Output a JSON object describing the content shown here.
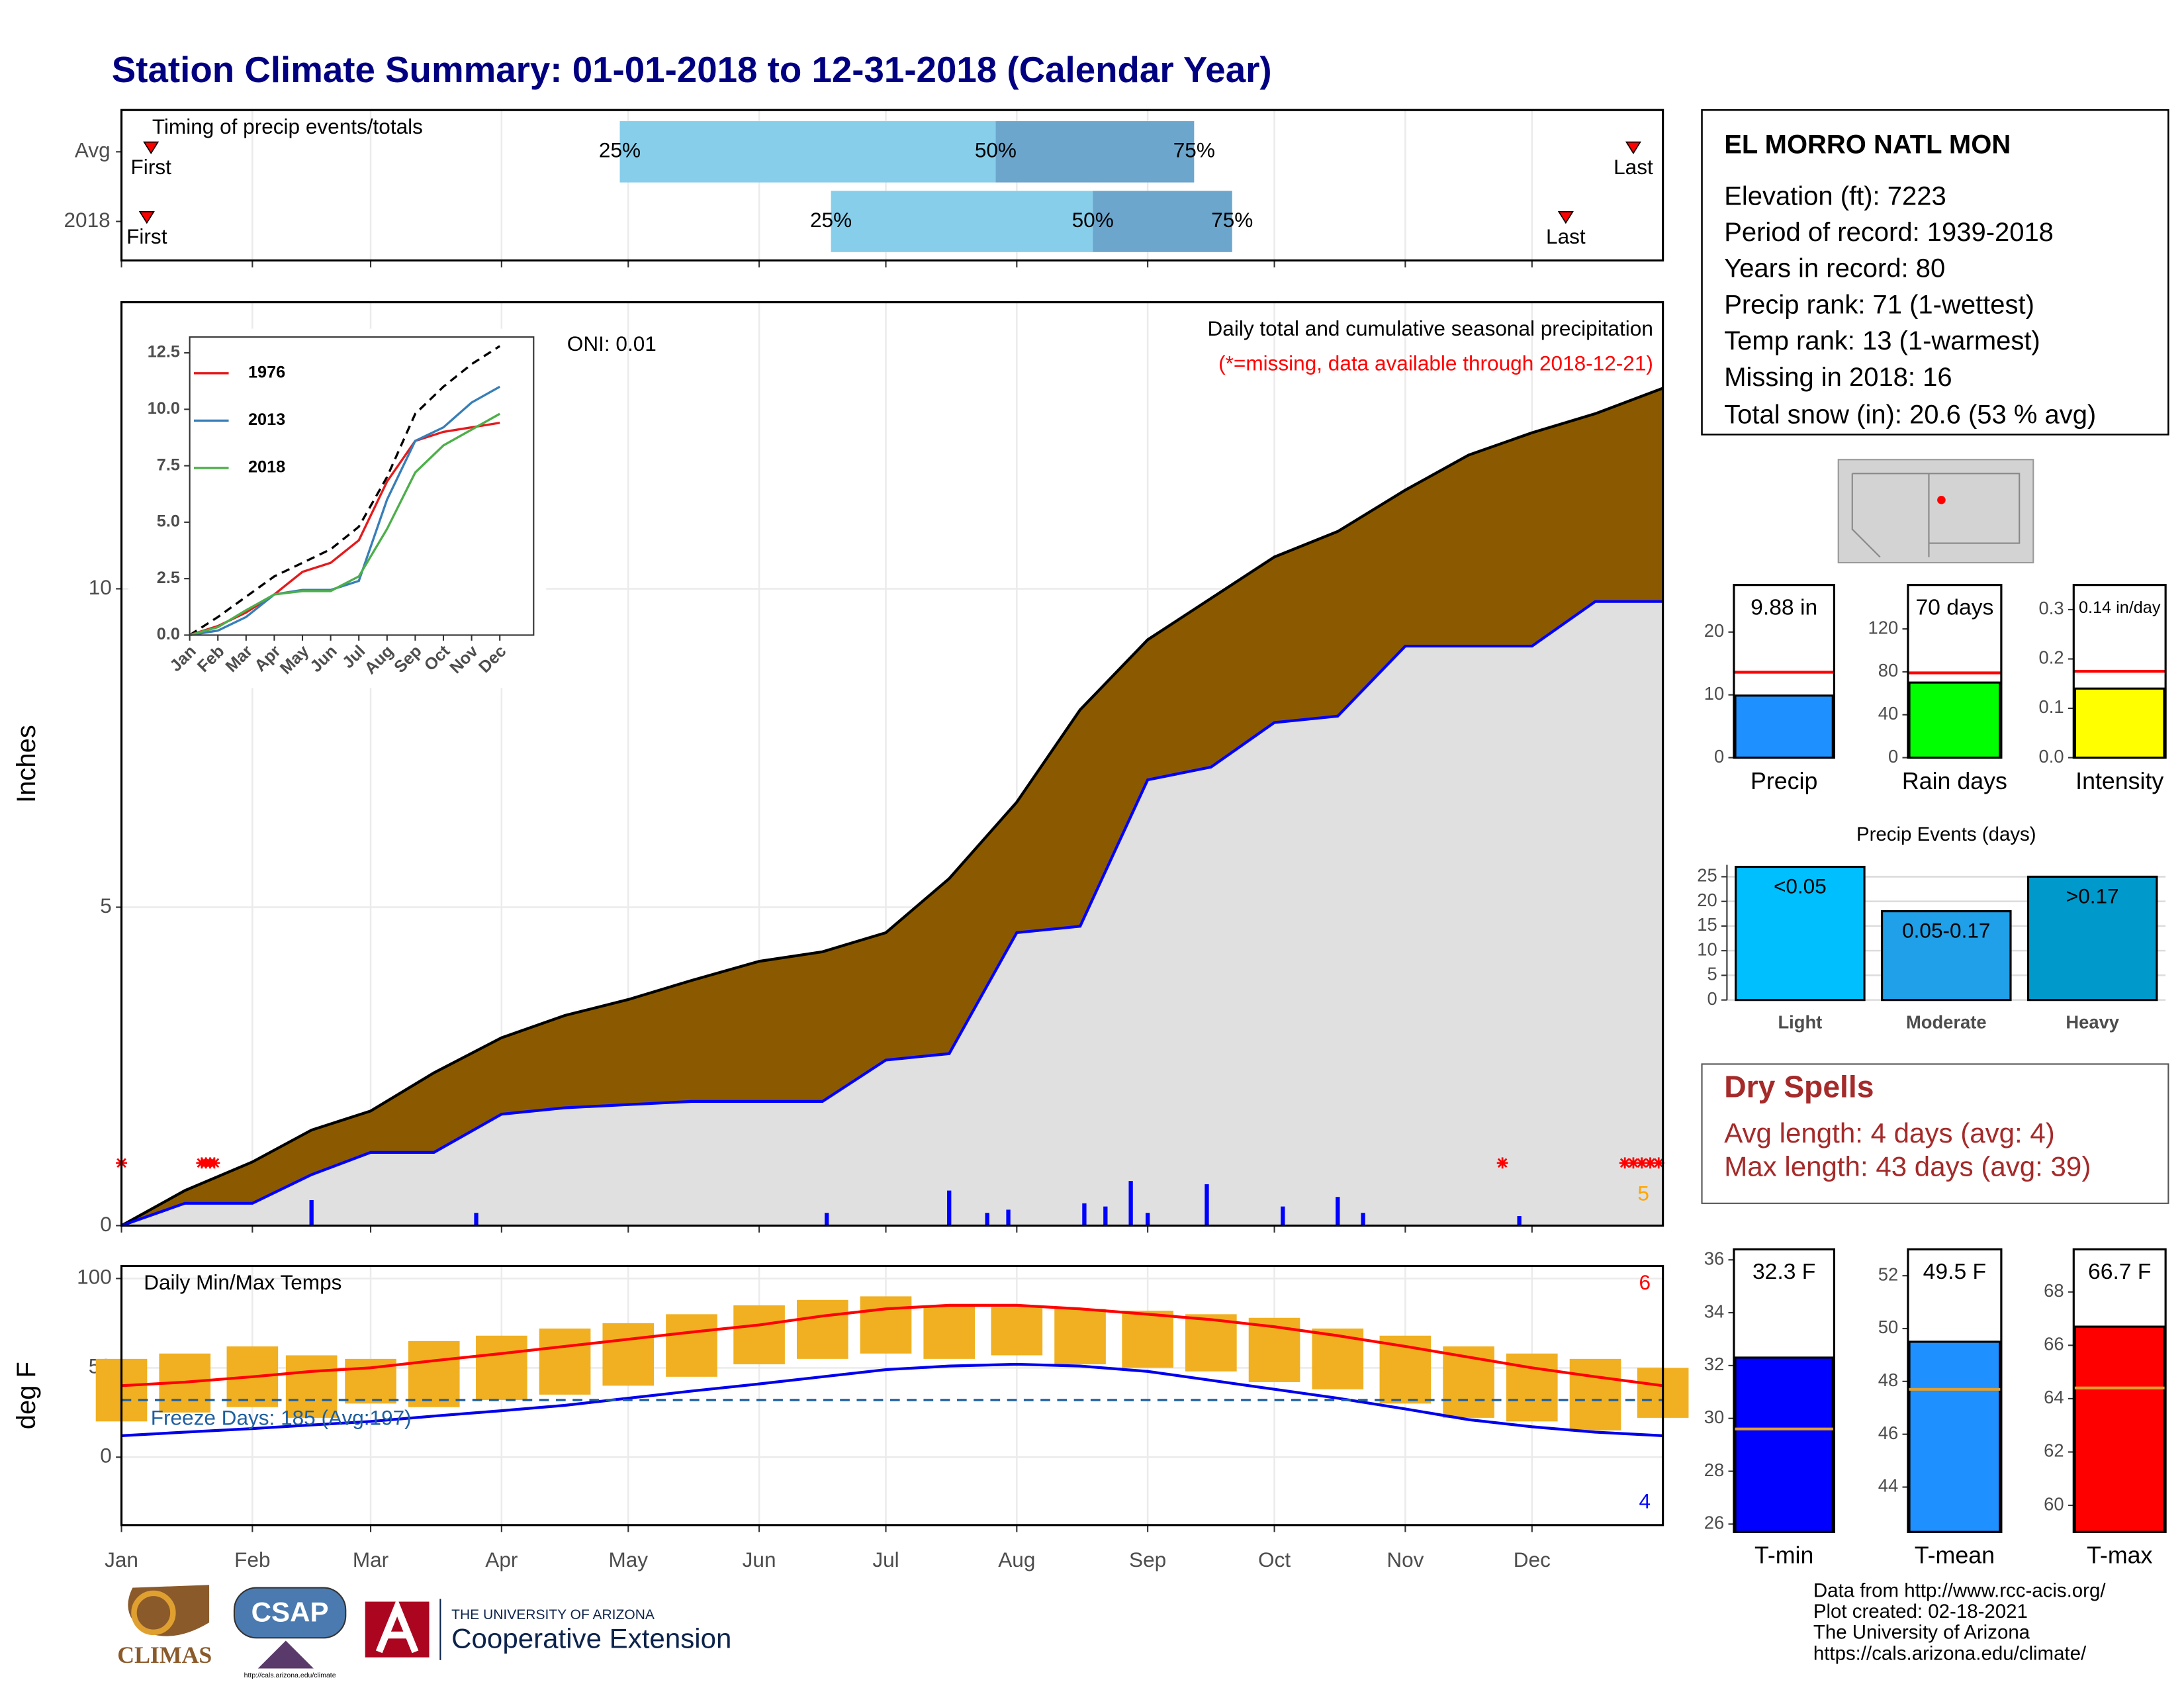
{
  "title": "Station Climate Summary: 01-01-2018 to 12-31-2018 (Calendar Year)",
  "station": {
    "name": "EL MORRO NATL MON",
    "lines": [
      "Elevation (ft): 7223",
      "Period of record: 1939-2018",
      "Years in record: 80",
      "Precip rank: 71 (1-wettest)",
      "Temp rank: 13 (1-warmest)",
      "Missing in 2018: 16",
      "Total snow (in): 20.6 (53 % avg)"
    ]
  },
  "dry_spells": {
    "title": "Dry Spells",
    "lines": [
      "Avg length: 4 days (avg: 4)",
      "Max length: 43 days (avg: 39)"
    ]
  },
  "footer": {
    "lines": [
      "Data from http://www.rcc-acis.org/",
      "Plot created: 02-18-2021",
      "The University of Arizona",
      "https://cals.arizona.edu/climate/"
    ]
  },
  "logos": {
    "climas": "CLIMAS",
    "csap": "CSAP",
    "csap_url": "http://cals.arizona.edu/climate",
    "university": "THE UNIVERSITY OF ARIZONA",
    "extension": "Cooperative Extension"
  },
  "chart_data": [
    {
      "type": "range",
      "title": "Timing of precip events/totals",
      "categories": [
        "Avg",
        "2018"
      ],
      "xlim": [
        0,
        365
      ],
      "first": [
        7,
        6
      ],
      "q25": [
        118,
        168
      ],
      "q50": [
        207,
        230
      ],
      "q75": [
        254,
        263
      ],
      "last": [
        358,
        342
      ],
      "colors": [
        "#87ceeb",
        "#6ca6cd"
      ],
      "marker_color": "#ff0000",
      "first_label": "First",
      "last_label": "Last",
      "q25_label": "25%",
      "q50_label": "50%",
      "q75_label": "75%"
    },
    {
      "type": "area",
      "title": "Daily total and cumulative seasonal precipitation",
      "note": "(*=missing, data available through 2018-12-21)",
      "annotation": "ONI: 0.01",
      "ylabel": "Inches",
      "count": 5,
      "count_color": "#ffa500",
      "x": [
        0,
        15,
        31,
        45,
        59,
        74,
        90,
        105,
        120,
        135,
        151,
        166,
        181,
        196,
        212,
        227,
        243,
        258,
        273,
        288,
        304,
        319,
        334,
        349,
        365
      ],
      "xlim": [
        0,
        365
      ],
      "ylim": [
        0,
        14.5
      ],
      "yticks": [
        0,
        5,
        10
      ],
      "grid": true,
      "series": [
        {
          "color": "#8b5a00",
          "line_color": "#000000",
          "values": [
            0,
            0.55,
            1.0,
            1.5,
            1.8,
            2.4,
            2.95,
            3.3,
            3.55,
            3.85,
            4.15,
            4.3,
            4.6,
            5.45,
            6.65,
            8.1,
            9.2,
            9.85,
            10.5,
            10.9,
            11.55,
            12.1,
            12.45,
            12.75,
            13.15
          ]
        },
        {
          "color": "#e0e0e0",
          "line_color": "#0000ff",
          "values": [
            0,
            0.35,
            0.35,
            0.8,
            1.15,
            1.15,
            1.75,
            1.85,
            1.9,
            1.95,
            1.95,
            1.95,
            2.6,
            2.7,
            4.6,
            4.7,
            7.0,
            7.2,
            7.9,
            8.0,
            9.1,
            9.1,
            9.1,
            9.8,
            9.8
          ]
        }
      ],
      "daily": {
        "color": "#0000ff",
        "x": [
          45,
          84,
          167,
          196,
          205,
          210,
          228,
          233,
          239,
          243,
          257,
          275,
          288,
          294,
          331
        ],
        "values": [
          0.4,
          0.2,
          0.2,
          0.55,
          0.2,
          0.25,
          0.35,
          0.3,
          0.7,
          0.2,
          0.65,
          0.3,
          0.45,
          0.2,
          0.15
        ]
      },
      "missing": {
        "color": "#ff0000",
        "x": [
          0,
          19,
          20,
          21,
          22,
          327,
          356,
          358,
          360,
          362,
          364
        ]
      }
    },
    {
      "type": "line",
      "categories": [
        "Jan",
        "Feb",
        "Mar",
        "Apr",
        "May",
        "Jun",
        "Jul",
        "Aug",
        "Sep",
        "Oct",
        "Nov",
        "Dec"
      ],
      "ylim": [
        0,
        13.2
      ],
      "yticks": [
        {
          "value": 0,
          "label": "0.0"
        },
        {
          "value": 2.5,
          "label": "2.5"
        },
        {
          "value": 5,
          "label": "5.0"
        },
        {
          "value": 7.5,
          "label": "7.5"
        },
        {
          "value": 10,
          "label": "10.0"
        },
        {
          "value": 12.5,
          "label": "12.5"
        }
      ],
      "series": [
        {
          "color": "#000000",
          "dash": true,
          "values": [
            0,
            0.8,
            1.7,
            2.6,
            3.2,
            3.8,
            4.8,
            7.0,
            9.8,
            11.0,
            12.0,
            12.8
          ]
        },
        {
          "name": "1976",
          "color": "#e41a1c",
          "values": [
            0,
            0.4,
            1.0,
            1.8,
            2.8,
            3.2,
            4.2,
            6.8,
            8.6,
            9.0,
            9.2,
            9.4
          ]
        },
        {
          "name": "2013",
          "color": "#377eb8",
          "values": [
            0,
            0.2,
            0.8,
            1.8,
            2.0,
            2.0,
            2.4,
            6.0,
            8.6,
            9.2,
            10.3,
            11.0
          ]
        },
        {
          "name": "2018",
          "color": "#4daf4a",
          "values": [
            0,
            0.35,
            1.1,
            1.8,
            1.95,
            1.95,
            2.6,
            4.7,
            7.2,
            8.4,
            9.1,
            9.8
          ]
        }
      ]
    },
    {
      "type": "band",
      "title": "Daily Min/Max Temps",
      "ylabel": "deg F",
      "freeze_label": "Freeze Days: 185 (Avg:197)",
      "freeze_line": 32,
      "freeze_color": "#1f5fa0",
      "count_high": 6,
      "count_low": 4,
      "x": [
        0,
        15,
        31,
        45,
        59,
        74,
        90,
        105,
        120,
        135,
        151,
        166,
        181,
        196,
        212,
        227,
        243,
        258,
        273,
        288,
        304,
        319,
        334,
        349,
        365
      ],
      "xlim": [
        0,
        365
      ],
      "ylim": [
        -38,
        107
      ],
      "yticks": [
        0,
        50,
        100
      ],
      "grid": true,
      "xticks": [
        {
          "value": 0,
          "label": "Jan"
        },
        {
          "value": 31,
          "label": "Feb"
        },
        {
          "value": 59,
          "label": "Mar"
        },
        {
          "value": 90,
          "label": "Apr"
        },
        {
          "value": 120,
          "label": "May"
        },
        {
          "value": 151,
          "label": "Jun"
        },
        {
          "value": 181,
          "label": "Jul"
        },
        {
          "value": 212,
          "label": "Aug"
        },
        {
          "value": 243,
          "label": "Sep"
        },
        {
          "value": 273,
          "label": "Oct"
        },
        {
          "value": 304,
          "label": "Nov"
        },
        {
          "value": 334,
          "label": "Dec"
        }
      ],
      "range_color": "#f0b021",
      "max": [
        55,
        58,
        62,
        57,
        55,
        65,
        68,
        72,
        75,
        80,
        85,
        88,
        90,
        85,
        84,
        83,
        82,
        80,
        78,
        72,
        68,
        62,
        58,
        55,
        50
      ],
      "min": [
        20,
        25,
        28,
        22,
        30,
        28,
        32,
        35,
        40,
        45,
        52,
        55,
        58,
        55,
        57,
        52,
        50,
        48,
        42,
        38,
        30,
        22,
        20,
        15,
        22
      ],
      "series": [
        {
          "color": "#ff0000",
          "values": [
            40,
            42,
            45,
            48,
            50,
            54,
            58,
            62,
            66,
            70,
            74,
            79,
            83,
            85,
            85,
            83,
            80,
            77,
            73,
            68,
            62,
            56,
            50,
            45,
            40
          ]
        },
        {
          "color": "#0000ee",
          "values": [
            12,
            14,
            16,
            18,
            20,
            23,
            26,
            29,
            33,
            37,
            41,
            45,
            49,
            51,
            52,
            51,
            48,
            43,
            38,
            33,
            27,
            21,
            17,
            14,
            12
          ]
        }
      ]
    },
    {
      "type": "bar",
      "categories": [
        "Precip"
      ],
      "values": [
        9.88
      ],
      "value_labels": [
        "9.88 in"
      ],
      "color": "#1e90ff",
      "avg": 13.6,
      "avg_color": "#ff0000",
      "ylim": [
        0,
        27.5
      ],
      "yticks": [
        0,
        10,
        20
      ]
    },
    {
      "type": "bar",
      "categories": [
        "Rain days"
      ],
      "values": [
        70
      ],
      "value_labels": [
        "70 days"
      ],
      "color": "#00ff00",
      "avg": 79,
      "avg_color": "#ff0000",
      "ylim": [
        0,
        161
      ],
      "yticks": [
        0,
        40,
        80,
        120
      ]
    },
    {
      "type": "bar",
      "categories": [
        "Intensity"
      ],
      "values": [
        0.14
      ],
      "value_labels": [
        "0.14 in/day"
      ],
      "color": "#ffff00",
      "avg": 0.175,
      "avg_color": "#ff0000",
      "ylim": [
        0,
        0.35
      ],
      "yticks": [
        {
          "value": 0,
          "label": "0.0"
        },
        {
          "value": 0.1,
          "label": "0.1"
        },
        {
          "value": 0.2,
          "label": "0.2"
        },
        {
          "value": 0.3,
          "label": "0.3"
        }
      ]
    },
    {
      "type": "bar",
      "title": "Precip Events (days)",
      "categories": [
        "Light",
        "Moderate",
        "Heavy"
      ],
      "values": [
        27,
        18,
        25
      ],
      "thresholds": [
        "<0.05",
        "0.05-0.17",
        ">0.17"
      ],
      "colors": [
        "#00bfff",
        "#1fa0e8",
        "#0099cc"
      ],
      "grid": true,
      "ylim": [
        0,
        27.4
      ],
      "yticks": [
        0,
        5,
        10,
        15,
        20,
        25
      ]
    },
    {
      "type": "bar",
      "categories": [
        "T-min"
      ],
      "values": [
        32.3
      ],
      "value_labels": [
        "32.3 F"
      ],
      "color": "#0000ff",
      "avg": 29.6,
      "avg_color": "#e0a030",
      "ylim": [
        25.7,
        36.4
      ],
      "yticks": [
        26,
        28,
        30,
        32,
        34,
        36
      ]
    },
    {
      "type": "bar",
      "categories": [
        "T-mean"
      ],
      "values": [
        49.5
      ],
      "value_labels": [
        "49.5 F"
      ],
      "color": "#1e90ff",
      "avg": 47.7,
      "avg_color": "#e0a030",
      "ylim": [
        42.3,
        53
      ],
      "yticks": [
        44,
        46,
        48,
        50,
        52
      ]
    },
    {
      "type": "bar",
      "categories": [
        "T-max"
      ],
      "values": [
        66.7
      ],
      "value_labels": [
        "66.7 F"
      ],
      "color": "#ff0000",
      "avg": 64.4,
      "avg_color": "#e0a030",
      "ylim": [
        59,
        69.6
      ],
      "yticks": [
        60,
        62,
        64,
        66,
        68
      ]
    }
  ]
}
